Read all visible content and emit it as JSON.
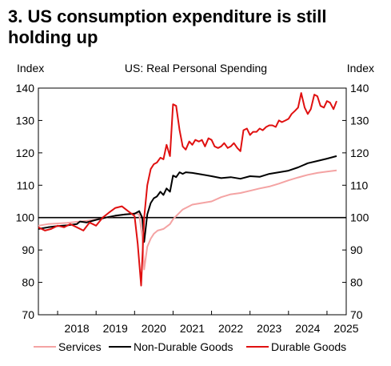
{
  "title": "3. US consumption expenditure is still holding up",
  "chart_data": {
    "type": "line",
    "title": "US: Real Personal Spending",
    "y_unit_left": "Index",
    "y_unit_right": "Index",
    "ylim": [
      70,
      140
    ],
    "yticks": [
      70,
      80,
      90,
      100,
      110,
      120,
      130,
      140
    ],
    "xlim": [
      2017.5,
      2025.5
    ],
    "xticks": [
      2018,
      2019,
      2020,
      2021,
      2022,
      2023,
      2024,
      2025
    ],
    "reference_line": 100,
    "grid": false,
    "legend_position": "bottom",
    "series": [
      {
        "name": "Services",
        "color": "#f4a3a3",
        "x": [
          2017.5,
          2017.75,
          2018.0,
          2018.25,
          2018.5,
          2018.75,
          2019.0,
          2019.25,
          2019.5,
          2019.75,
          2020.0,
          2020.12,
          2020.2,
          2020.25,
          2020.33,
          2020.42,
          2020.5,
          2020.6,
          2020.75,
          2020.92,
          2021.0,
          2021.25,
          2021.5,
          2021.75,
          2022.0,
          2022.25,
          2022.5,
          2022.75,
          2023.0,
          2023.25,
          2023.5,
          2023.75,
          2024.0,
          2024.25,
          2024.5,
          2024.75,
          2025.0,
          2025.25
        ],
        "y": [
          97.5,
          98.0,
          98.2,
          98.4,
          98.7,
          99.0,
          99.4,
          100.0,
          100.5,
          101.0,
          101.4,
          101.0,
          94.0,
          84.0,
          91.0,
          93.5,
          95.0,
          96.0,
          96.5,
          98.0,
          99.5,
          102.5,
          104.0,
          104.5,
          105.0,
          106.3,
          107.2,
          107.6,
          108.3,
          109.0,
          109.6,
          110.5,
          111.5,
          112.4,
          113.2,
          113.8,
          114.2,
          114.6
        ]
      },
      {
        "name": "Non-Durable Goods",
        "color": "#000000",
        "x": [
          2017.5,
          2017.75,
          2018.0,
          2018.25,
          2018.5,
          2018.58,
          2018.75,
          2019.0,
          2019.25,
          2019.5,
          2019.75,
          2020.0,
          2020.12,
          2020.2,
          2020.25,
          2020.33,
          2020.42,
          2020.5,
          2020.58,
          2020.67,
          2020.75,
          2020.83,
          2020.92,
          2021.0,
          2021.08,
          2021.17,
          2021.25,
          2021.33,
          2021.5,
          2021.75,
          2022.0,
          2022.25,
          2022.5,
          2022.75,
          2023.0,
          2023.25,
          2023.5,
          2023.75,
          2024.0,
          2024.25,
          2024.5,
          2024.75,
          2025.0,
          2025.25
        ],
        "y": [
          96.5,
          97.0,
          97.4,
          97.6,
          98.0,
          98.8,
          98.5,
          99.3,
          100.0,
          100.6,
          101.0,
          101.2,
          102.0,
          100.0,
          92.5,
          101.0,
          104.5,
          106.0,
          106.5,
          108.0,
          107.0,
          109.0,
          108.0,
          113.0,
          112.5,
          114.0,
          113.5,
          114.0,
          113.8,
          113.3,
          112.8,
          112.2,
          112.5,
          112.0,
          112.8,
          112.6,
          113.5,
          114.0,
          114.5,
          115.5,
          116.8,
          117.5,
          118.2,
          119.0
        ]
      },
      {
        "name": "Durable Goods",
        "color": "#e01010",
        "x": [
          2017.5,
          2017.67,
          2017.83,
          2018.0,
          2018.17,
          2018.33,
          2018.5,
          2018.67,
          2018.83,
          2019.0,
          2019.17,
          2019.33,
          2019.5,
          2019.67,
          2019.83,
          2020.0,
          2020.08,
          2020.17,
          2020.25,
          2020.33,
          2020.42,
          2020.5,
          2020.58,
          2020.67,
          2020.75,
          2020.83,
          2020.92,
          2021.0,
          2021.08,
          2021.17,
          2021.25,
          2021.33,
          2021.42,
          2021.5,
          2021.58,
          2021.67,
          2021.75,
          2021.83,
          2021.92,
          2022.0,
          2022.08,
          2022.17,
          2022.25,
          2022.33,
          2022.42,
          2022.5,
          2022.58,
          2022.67,
          2022.75,
          2022.83,
          2022.92,
          2023.0,
          2023.08,
          2023.17,
          2023.25,
          2023.33,
          2023.42,
          2023.5,
          2023.58,
          2023.67,
          2023.75,
          2023.83,
          2023.92,
          2024.0,
          2024.08,
          2024.17,
          2024.25,
          2024.33,
          2024.42,
          2024.5,
          2024.58,
          2024.67,
          2024.75,
          2024.83,
          2024.92,
          2025.0,
          2025.08,
          2025.17,
          2025.25
        ],
        "y": [
          97.0,
          96.0,
          96.5,
          97.5,
          97.0,
          98.0,
          97.0,
          96.0,
          98.5,
          97.5,
          100.0,
          101.5,
          103.0,
          103.5,
          102.0,
          100.5,
          92.0,
          79.0,
          100.0,
          110.0,
          115.0,
          116.5,
          117.0,
          118.5,
          118.0,
          122.5,
          119.0,
          135.0,
          134.5,
          127.0,
          122.0,
          121.0,
          123.5,
          122.5,
          124.0,
          123.5,
          124.0,
          122.0,
          124.5,
          124.0,
          122.0,
          121.5,
          122.0,
          123.0,
          121.5,
          122.0,
          123.0,
          121.5,
          120.5,
          127.0,
          127.5,
          125.5,
          126.5,
          126.5,
          127.5,
          127.0,
          128.0,
          128.5,
          128.5,
          128.0,
          130.0,
          129.5,
          130.0,
          130.5,
          132.0,
          133.0,
          134.0,
          138.5,
          134.0,
          132.0,
          133.5,
          138.0,
          137.5,
          134.5,
          134.0,
          136.0,
          135.5,
          133.5,
          136.0
        ]
      }
    ]
  }
}
